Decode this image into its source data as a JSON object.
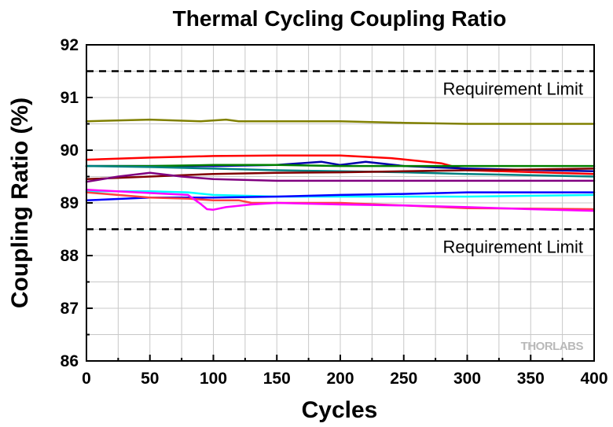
{
  "chart_data": {
    "type": "line",
    "title": "Thermal Cycling Coupling Ratio",
    "xlabel": "Cycles",
    "ylabel": "Coupling Ratio (%)",
    "xlim": [
      0,
      400
    ],
    "ylim": [
      86,
      92
    ],
    "xticks": [
      "0",
      "50",
      "100",
      "150",
      "200",
      "250",
      "300",
      "350",
      "400"
    ],
    "yticks": [
      "86",
      "87",
      "88",
      "89",
      "90",
      "91",
      "92"
    ],
    "grid": true,
    "legend": "none",
    "reference_lines": [
      {
        "y": 91.5,
        "style": "dashed",
        "label": "Requirement Limit"
      },
      {
        "y": 88.5,
        "style": "dashed",
        "label": "Requirement Limit"
      }
    ],
    "watermark": "THORLABS",
    "series": [
      {
        "color": "#808000",
        "x": [
          0,
          50,
          90,
          110,
          120,
          200,
          250,
          300,
          400
        ],
        "values": [
          90.55,
          90.58,
          90.55,
          90.58,
          90.55,
          90.55,
          90.52,
          90.5,
          90.5
        ]
      },
      {
        "color": "#ff0000",
        "x": [
          0,
          50,
          100,
          150,
          200,
          240,
          280,
          300,
          400
        ],
        "values": [
          89.82,
          89.86,
          89.89,
          89.9,
          89.9,
          89.85,
          89.75,
          89.62,
          89.55
        ]
      },
      {
        "color": "#0000aa",
        "x": [
          0,
          100,
          150,
          185,
          200,
          220,
          250,
          300,
          400
        ],
        "values": [
          89.7,
          89.7,
          89.72,
          89.78,
          89.72,
          89.78,
          89.7,
          89.65,
          89.6
        ]
      },
      {
        "color": "#008000",
        "x": [
          0,
          50,
          100,
          150,
          200,
          250,
          300,
          400
        ],
        "values": [
          89.7,
          89.7,
          89.72,
          89.72,
          89.7,
          89.7,
          89.7,
          89.7
        ]
      },
      {
        "color": "#008080",
        "x": [
          0,
          50,
          100,
          150,
          200,
          250,
          300,
          400
        ],
        "values": [
          89.7,
          89.68,
          89.65,
          89.62,
          89.6,
          89.58,
          89.55,
          89.5
        ]
      },
      {
        "color": "#800000",
        "x": [
          0,
          50,
          100,
          150,
          200,
          250,
          300,
          400
        ],
        "values": [
          89.45,
          89.5,
          89.55,
          89.57,
          89.58,
          89.6,
          89.62,
          89.65
        ]
      },
      {
        "color": "#800080",
        "x": [
          0,
          25,
          50,
          75,
          100,
          150,
          200,
          250,
          300,
          400
        ],
        "values": [
          89.4,
          89.5,
          89.57,
          89.5,
          89.45,
          89.42,
          89.42,
          89.42,
          89.42,
          89.42
        ]
      },
      {
        "color": "#00ffff",
        "x": [
          0,
          50,
          80,
          100,
          150,
          200,
          250,
          300,
          400
        ],
        "values": [
          89.22,
          89.22,
          89.2,
          89.15,
          89.12,
          89.12,
          89.12,
          89.12,
          89.15
        ]
      },
      {
        "color": "#0000ff",
        "x": [
          0,
          50,
          100,
          150,
          200,
          250,
          300,
          400
        ],
        "values": [
          89.05,
          89.1,
          89.1,
          89.12,
          89.15,
          89.17,
          89.2,
          89.2
        ]
      },
      {
        "color": "#ff4040",
        "x": [
          0,
          50,
          80,
          100,
          120,
          130,
          150,
          200,
          250,
          300,
          400
        ],
        "values": [
          89.2,
          89.1,
          89.08,
          89.05,
          89.05,
          89.0,
          89.0,
          89.0,
          88.95,
          88.9,
          88.88
        ]
      },
      {
        "color": "#ff00ff",
        "x": [
          0,
          40,
          80,
          90,
          95,
          100,
          110,
          130,
          150,
          200,
          250,
          300,
          350,
          400
        ],
        "values": [
          89.25,
          89.2,
          89.15,
          88.98,
          88.88,
          88.87,
          88.92,
          88.97,
          89.0,
          88.97,
          88.95,
          88.92,
          88.88,
          88.85
        ]
      }
    ]
  }
}
